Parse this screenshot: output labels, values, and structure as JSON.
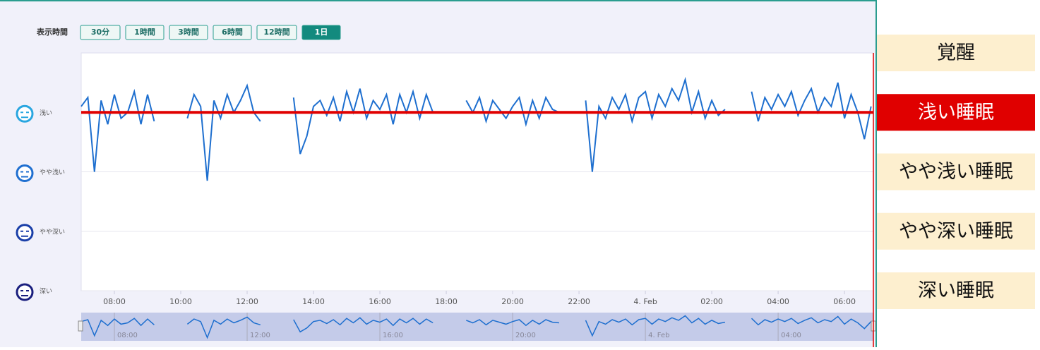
{
  "controls": {
    "label": "表示時間",
    "buttons": [
      "30分",
      "1時間",
      "3時間",
      "6時間",
      "12時間",
      "1日"
    ],
    "active": 5
  },
  "chart_data": {
    "type": "line",
    "color": "#1e6fcf",
    "x": [
      7.0,
      7.2,
      7.4,
      7.6,
      7.8,
      8.0,
      8.2,
      8.4,
      8.6,
      8.8,
      9.0,
      9.2,
      9.4,
      9.6,
      9.8,
      10.0,
      10.2,
      10.4,
      10.6,
      10.8,
      11.0,
      11.2,
      11.4,
      11.6,
      11.8,
      12.0,
      12.2,
      12.4,
      12.6,
      12.8,
      13.0,
      13.2,
      13.4,
      13.6,
      13.8,
      14.0,
      14.2,
      14.4,
      14.6,
      14.8,
      15.0,
      15.2,
      15.4,
      15.6,
      15.8,
      16.0,
      16.2,
      16.4,
      16.6,
      16.8,
      17.0,
      17.2,
      17.4,
      17.6,
      17.8,
      18.0,
      18.2,
      18.4,
      18.6,
      18.8,
      19.0,
      19.2,
      19.4,
      19.6,
      19.8,
      20.0,
      20.2,
      20.4,
      20.6,
      20.8,
      21.0,
      21.2,
      21.4,
      21.6,
      21.8,
      22.0,
      22.2,
      22.4,
      22.6,
      22.8,
      23.0,
      23.2,
      23.4,
      23.6,
      23.8,
      24.0,
      24.2,
      24.4,
      24.6,
      24.8,
      25.0,
      25.2,
      25.4,
      25.6,
      25.8,
      26.0,
      26.2,
      26.4,
      26.6,
      26.8,
      27.0,
      27.2,
      27.4,
      27.6,
      27.8,
      28.0,
      28.2,
      28.4,
      28.6,
      28.8,
      29.0,
      29.2,
      29.4,
      29.6,
      29.8,
      30.0,
      30.2,
      30.4,
      30.6,
      30.8
    ],
    "values": [
      3.1,
      3.25,
      2.0,
      3.2,
      2.8,
      3.3,
      2.9,
      3.0,
      3.35,
      2.8,
      3.3,
      2.85,
      null,
      null,
      null,
      null,
      2.9,
      3.3,
      3.1,
      1.85,
      3.2,
      2.9,
      3.3,
      3.0,
      3.2,
      3.45,
      3.0,
      2.85,
      null,
      null,
      null,
      null,
      3.25,
      2.3,
      2.6,
      3.1,
      3.2,
      2.95,
      3.25,
      2.85,
      3.35,
      3.0,
      3.4,
      2.9,
      3.2,
      3.05,
      3.3,
      2.8,
      3.3,
      3.0,
      3.35,
      2.9,
      3.3,
      3.0,
      null,
      null,
      null,
      null,
      3.2,
      3.0,
      3.25,
      2.85,
      3.2,
      3.05,
      2.9,
      3.1,
      3.25,
      2.8,
      3.2,
      2.9,
      3.25,
      3.05,
      3.0,
      null,
      null,
      null,
      3.2,
      2.0,
      3.1,
      2.9,
      3.25,
      3.05,
      3.3,
      2.85,
      3.25,
      3.35,
      2.9,
      3.3,
      3.1,
      3.4,
      3.2,
      3.55,
      3.0,
      3.35,
      2.9,
      3.2,
      2.95,
      3.05,
      null,
      null,
      null,
      3.35,
      2.85,
      3.25,
      3.05,
      3.3,
      3.1,
      3.35,
      2.95,
      3.2,
      3.4,
      3.0,
      3.25,
      3.1,
      3.5,
      2.9,
      3.3,
      3.0,
      2.55,
      3.1
    ],
    "xlim": [
      7,
      30.87
    ],
    "ylim": [
      0,
      4
    ],
    "xticks": [
      {
        "value": 8,
        "label": "08:00"
      },
      {
        "value": 10,
        "label": "10:00"
      },
      {
        "value": 12,
        "label": "12:00"
      },
      {
        "value": 14,
        "label": "14:00"
      },
      {
        "value": 16,
        "label": "16:00"
      },
      {
        "value": 18,
        "label": "18:00"
      },
      {
        "value": 20,
        "label": "20:00"
      },
      {
        "value": 22,
        "label": "22:00"
      },
      {
        "value": 24,
        "label": "4. Feb"
      },
      {
        "value": 26,
        "label": "02:00"
      },
      {
        "value": 28,
        "label": "04:00"
      },
      {
        "value": 30,
        "label": "06:00"
      }
    ],
    "yticks": [
      {
        "value": 3,
        "label": "浅い"
      },
      {
        "value": 2,
        "label": "やや浅い"
      },
      {
        "value": 1,
        "label": "やや深い"
      },
      {
        "value": 0,
        "label": "深い"
      }
    ],
    "navigator_ticks": [
      {
        "value": 8,
        "label": "08:00"
      },
      {
        "value": 12,
        "label": "12:00"
      },
      {
        "value": 16,
        "label": "16:00"
      },
      {
        "value": 20,
        "label": "20:00"
      },
      {
        "value": 24,
        "label": "4. Feb"
      },
      {
        "value": 28,
        "label": "04:00"
      }
    ],
    "reference_line": {
      "value": 3,
      "color": "#e00000"
    },
    "level_labels": [
      {
        "value": 4,
        "label": "覚醒"
      },
      {
        "value": 3,
        "label": "浅い睡眠"
      },
      {
        "value": 2,
        "label": "やや浅い睡眠"
      },
      {
        "value": 1,
        "label": "やや深い睡眠"
      },
      {
        "value": 0,
        "label": "深い睡眠"
      }
    ]
  }
}
